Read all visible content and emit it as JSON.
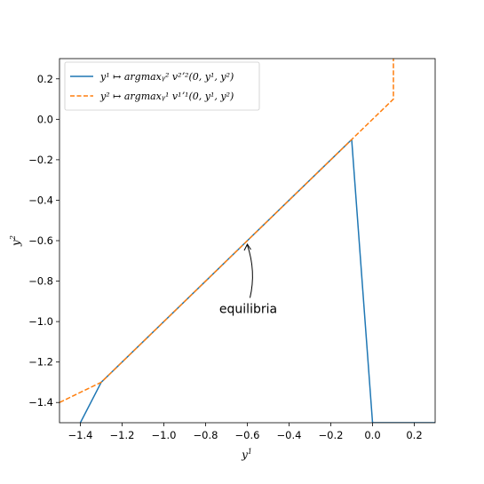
{
  "chart_data": {
    "type": "line",
    "title": "",
    "xlabel_base": "y",
    "xlabel_sup": "1",
    "ylabel_base": "y",
    "ylabel_sup": "2",
    "xlim": [
      -1.5,
      0.3
    ],
    "ylim": [
      -1.5,
      0.3
    ],
    "xticks": [
      -1.4,
      -1.2,
      -1.0,
      -0.8,
      -0.6,
      -0.4,
      -0.2,
      0.0,
      0.2
    ],
    "xtick_labels": [
      "−1.4",
      "−1.2",
      "−1.0",
      "−0.8",
      "−0.6",
      "−0.4",
      "−0.2",
      "0.0",
      "0.2"
    ],
    "yticks": [
      -1.4,
      -1.2,
      -1.0,
      -0.8,
      -0.6,
      -0.4,
      -0.2,
      0.0,
      0.2
    ],
    "ytick_labels": [
      "−1.4",
      "−1.2",
      "−1.0",
      "−0.8",
      "−0.6",
      "−0.4",
      "−0.2",
      "0.0",
      "0.2"
    ],
    "grid": false,
    "legend_position": "upper-left",
    "series": [
      {
        "name": "y¹ ↦ argmaxᵧ² v²ʼ²(0, y¹, y²)",
        "color": "#1f77b4",
        "style": "solid",
        "x": [
          -1.4,
          -1.3,
          -0.1,
          0.0,
          0.3
        ],
        "y": [
          -1.5,
          -1.3,
          -0.1,
          -1.5,
          -1.5
        ]
      },
      {
        "name": "y² ↦ argmaxᵧ¹ v¹ʼ¹(0, y¹, y²)",
        "color": "#ff7f0e",
        "style": "dashed",
        "x": [
          -1.5,
          -1.3,
          -0.1,
          0.1,
          0.1
        ],
        "y": [
          -1.4,
          -1.3,
          -0.1,
          0.1,
          0.3
        ]
      }
    ],
    "annotation": {
      "text": "equilibria",
      "arrow_tip": [
        -0.6,
        -0.6
      ],
      "text_at": [
        -0.6,
        -0.9
      ]
    }
  }
}
